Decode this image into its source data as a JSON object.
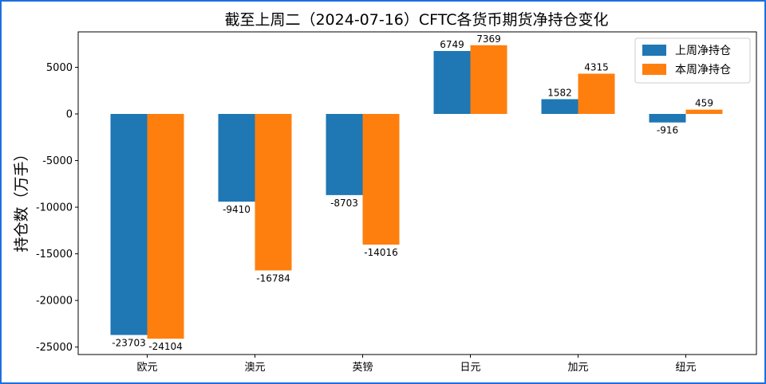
{
  "chart_data": {
    "type": "bar",
    "title": "截至上周二（2024-07-16）CFTC各货币期货净持仓变化",
    "xlabel": "",
    "ylabel": "持仓数（万手）",
    "categories": [
      "欧元",
      "澳元",
      "英镑",
      "日元",
      "加元",
      "纽元"
    ],
    "series": [
      {
        "name": "上周净持仓",
        "color": "#1f77b4",
        "values": [
          -23703,
          -9410,
          -8703,
          6749,
          1582,
          -916
        ]
      },
      {
        "name": "本周净持仓",
        "color": "#ff7f0e",
        "values": [
          -24104,
          -16784,
          -14016,
          7369,
          4315,
          459
        ]
      }
    ],
    "ylim": [
      -25800,
      8800
    ],
    "yticks": [
      5000,
      0,
      -5000,
      -10000,
      -15000,
      -20000,
      -25000
    ],
    "ytick_labels": [
      "5000",
      "0",
      "-5000",
      "-10000",
      "-15000",
      "-20000",
      "-25000"
    ],
    "legend": "top-right",
    "grid": false
  }
}
